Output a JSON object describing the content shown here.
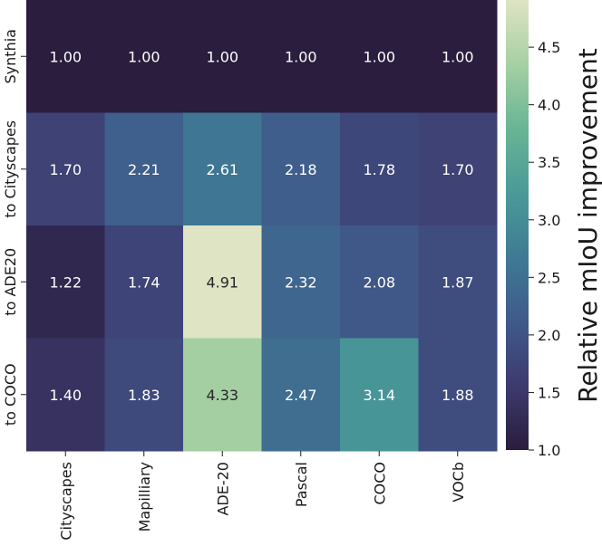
{
  "chart_data": {
    "type": "heatmap",
    "title": "",
    "xlabel": "",
    "ylabel": "",
    "columns": [
      "Cityscapes",
      "Mapilliary",
      "ADE-20",
      "Pascal",
      "COCO",
      "VOCb"
    ],
    "rows": [
      "Synthia",
      "to Cityscapes",
      "to ADE20",
      "to COCO"
    ],
    "values": [
      [
        1.0,
        1.0,
        1.0,
        1.0,
        1.0,
        1.0
      ],
      [
        1.7,
        2.21,
        2.61,
        2.18,
        1.78,
        1.7
      ],
      [
        1.22,
        1.74,
        4.91,
        2.32,
        2.08,
        1.87
      ],
      [
        1.4,
        1.83,
        4.33,
        2.47,
        3.14,
        1.88
      ]
    ],
    "value_format": "2 decimals",
    "colorbar": {
      "label": "Relative mIoU improvement",
      "range": [
        1.0,
        4.91
      ],
      "ticks": [
        1.0,
        1.5,
        2.0,
        2.5,
        3.0,
        3.5,
        4.0,
        4.5
      ],
      "tick_labels": [
        "1.0",
        "1.5",
        "2.0",
        "2.5",
        "3.0",
        "3.5",
        "4.0",
        "4.5"
      ]
    },
    "colormap": [
      "#2a1d3d",
      "#3d3a6e",
      "#3f5a8a",
      "#3f7a94",
      "#4a9a98",
      "#68b594",
      "#a6d0a4",
      "#dfe4c4"
    ],
    "text_colors": {
      "dark_cells": "#ffffff",
      "light_cells": "#262626"
    }
  }
}
